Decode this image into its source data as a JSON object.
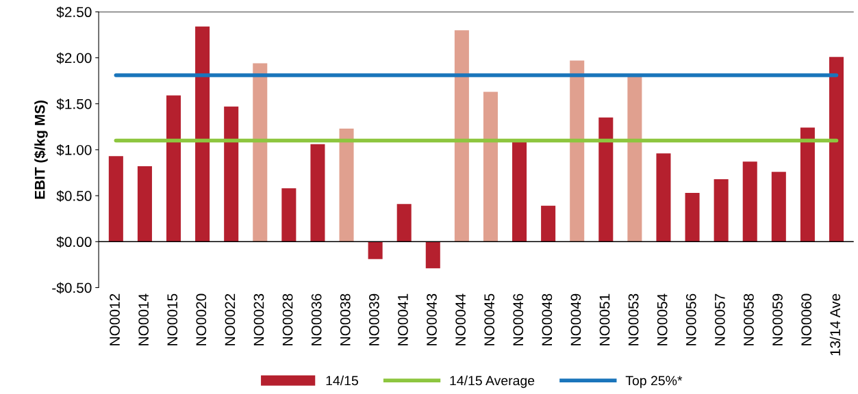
{
  "chart_data": {
    "type": "bar",
    "ylabel": "EBIT ($/kg MS)",
    "categories": [
      "NO0012",
      "NO0014",
      "NO0015",
      "NO0020",
      "NO0022",
      "NO0023",
      "NO0028",
      "NO0036",
      "NO0038",
      "NO0039",
      "NO0041",
      "NO0043",
      "NO0044",
      "NO0045",
      "NO0046",
      "NO0048",
      "NO0049",
      "NO0051",
      "NO0053",
      "NO0054",
      "NO0056",
      "NO0057",
      "NO0058",
      "NO0059",
      "NO0060",
      "13/14 Ave"
    ],
    "series": [
      {
        "name": "14/15",
        "color": "#b5202e",
        "colors": [
          "#b5202e",
          "#b5202e",
          "#b5202e",
          "#b5202e",
          "#b5202e",
          "#e0a08f",
          "#b5202e",
          "#b5202e",
          "#e0a08f",
          "#b5202e",
          "#b5202e",
          "#b5202e",
          "#e0a08f",
          "#e0a08f",
          "#b5202e",
          "#b5202e",
          "#e0a08f",
          "#b5202e",
          "#e0a08f",
          "#b5202e",
          "#b5202e",
          "#b5202e",
          "#b5202e",
          "#b5202e",
          "#b5202e",
          "#b5202e"
        ],
        "values": [
          0.93,
          0.82,
          1.59,
          2.34,
          1.47,
          1.94,
          0.58,
          1.06,
          1.23,
          -0.19,
          0.41,
          -0.29,
          2.3,
          1.63,
          1.09,
          0.39,
          1.97,
          1.35,
          1.8,
          0.96,
          0.53,
          0.68,
          0.87,
          0.76,
          1.24,
          2.01
        ]
      },
      {
        "name": "14/15 Average",
        "type": "line",
        "color": "#8dc63f",
        "values": [
          1.1,
          1.1,
          1.1,
          1.1,
          1.1,
          1.1,
          1.1,
          1.1,
          1.1,
          1.1,
          1.1,
          1.1,
          1.1,
          1.1,
          1.1,
          1.1,
          1.1,
          1.1,
          1.1,
          1.1,
          1.1,
          1.1,
          1.1,
          1.1,
          1.1,
          1.1
        ]
      },
      {
        "name": "Top 25%*",
        "type": "line",
        "color": "#1a75bb",
        "values": [
          1.81,
          1.81,
          1.81,
          1.81,
          1.81,
          1.81,
          1.81,
          1.81,
          1.81,
          1.81,
          1.81,
          1.81,
          1.81,
          1.81,
          1.81,
          1.81,
          1.81,
          1.81,
          1.81,
          1.81,
          1.81,
          1.81,
          1.81,
          1.81,
          1.81,
          1.81
        ]
      }
    ],
    "ylim": [
      -0.5,
      2.5
    ],
    "yticks": [
      {
        "value": -0.5,
        "label": "-$0.50"
      },
      {
        "value": 0,
        "label": "$0.00"
      },
      {
        "value": 0.5,
        "label": "$0.50"
      },
      {
        "value": 1.0,
        "label": "$1.00"
      },
      {
        "value": 1.5,
        "label": "$1.50"
      },
      {
        "value": 2.0,
        "label": "$2.00"
      },
      {
        "value": 2.5,
        "label": "$2.50"
      }
    ],
    "legend": "bottom",
    "marker": "none",
    "line_style": "solid"
  }
}
